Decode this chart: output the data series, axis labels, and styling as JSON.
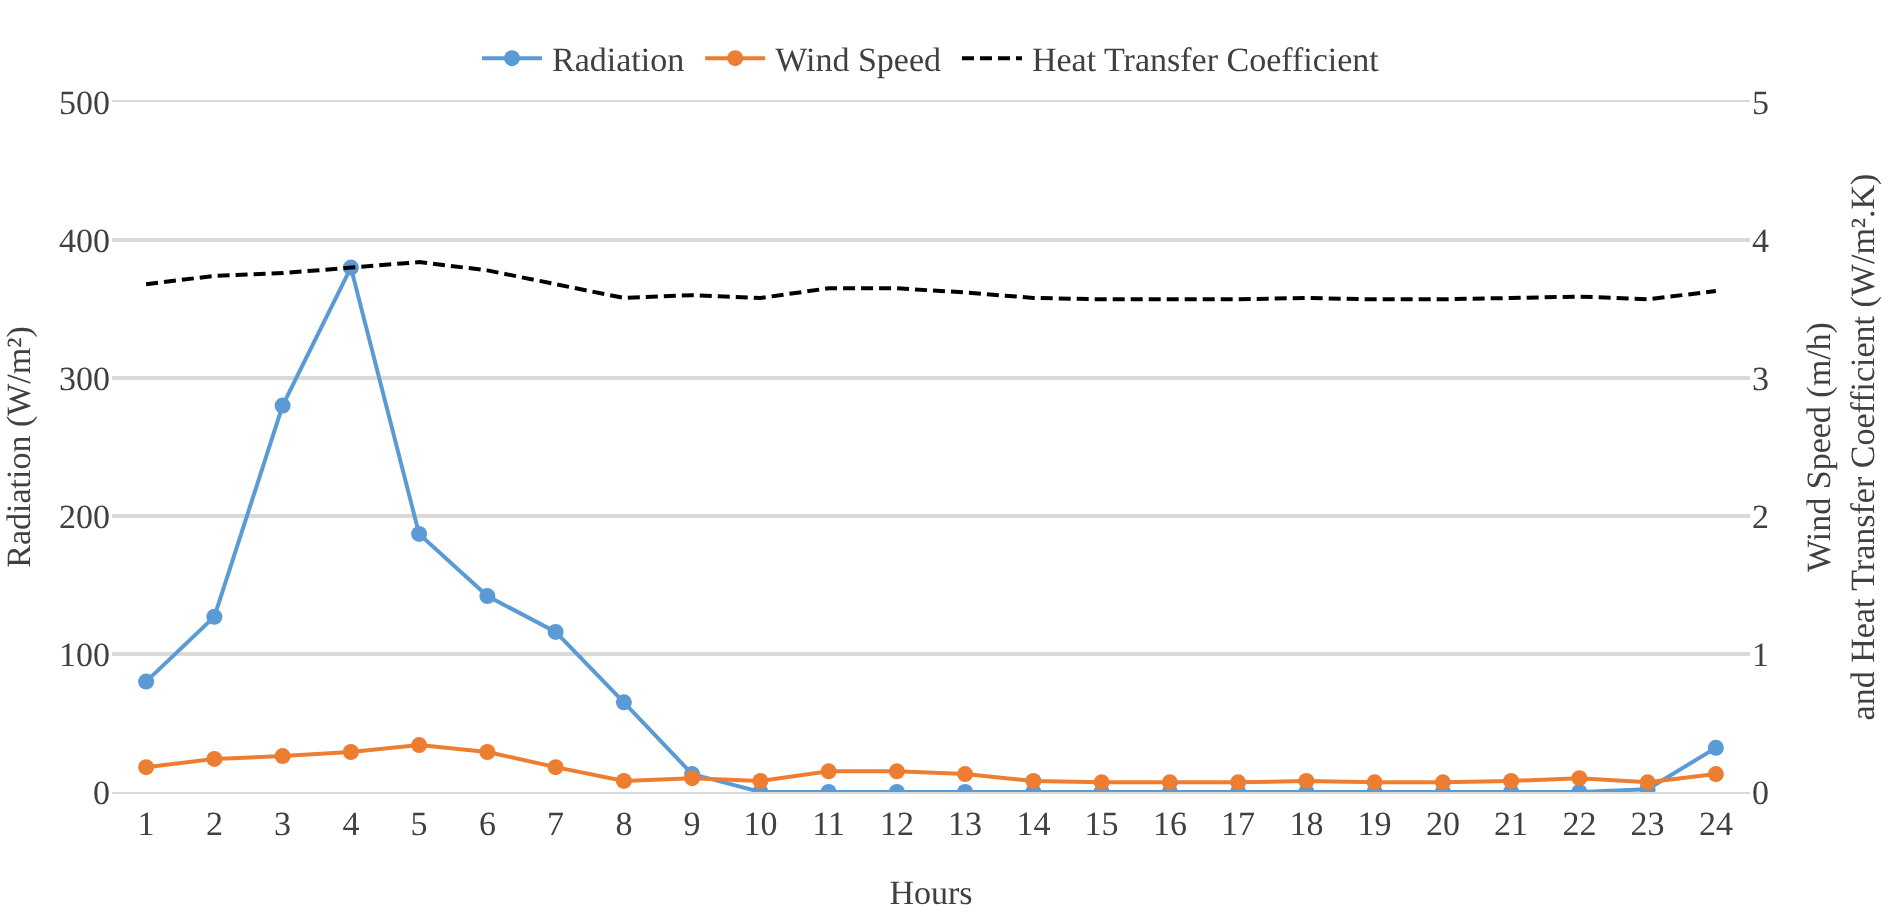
{
  "chart_data": {
    "type": "line",
    "xlabel": "Hours",
    "ylabel": "Radiation (W/m²)",
    "y2label": "Wind Speed (m/h) and Heat Transfer Coefficient (W/m².K)",
    "x": [
      1,
      2,
      3,
      4,
      5,
      6,
      7,
      8,
      9,
      10,
      11,
      12,
      13,
      14,
      15,
      16,
      17,
      18,
      19,
      20,
      21,
      22,
      23,
      24
    ],
    "xlim": [
      0.5,
      24.5
    ],
    "xticks": [
      1,
      2,
      3,
      4,
      5,
      6,
      7,
      8,
      9,
      10,
      11,
      12,
      13,
      14,
      15,
      16,
      17,
      18,
      19,
      20,
      21,
      22,
      23,
      24
    ],
    "series": [
      {
        "name": "Radiation",
        "color": "#5b9bd5",
        "marker": "circle",
        "line_style": "solid",
        "values": [
          80,
          127,
          280,
          380,
          187,
          142,
          116,
          65,
          13,
          0,
          0,
          0,
          0,
          0,
          0,
          0,
          0,
          0,
          0,
          0,
          0,
          0,
          2,
          32
        ]
      },
      {
        "name": "Wind Speed",
        "color": "#ed7d31",
        "marker": "circle",
        "line_style": "solid",
        "axis": "y2",
        "values": [
          0.18,
          0.24,
          0.26,
          0.29,
          0.34,
          0.29,
          0.18,
          0.08,
          0.1,
          0.08,
          0.15,
          0.15,
          0.13,
          0.08,
          0.07,
          0.07,
          0.07,
          0.08,
          0.07,
          0.07,
          0.08,
          0.1,
          0.07,
          0.13
        ]
      },
      {
        "name": "Heat Transfer Coefficient",
        "color": "#000000",
        "marker": "none",
        "line_style": "dashed",
        "axis": "y2",
        "values": [
          3.68,
          3.74,
          3.76,
          3.8,
          3.84,
          3.78,
          3.68,
          3.58,
          3.6,
          3.58,
          3.65,
          3.65,
          3.62,
          3.58,
          3.57,
          3.57,
          3.57,
          3.58,
          3.57,
          3.57,
          3.58,
          3.59,
          3.57,
          3.63
        ]
      }
    ],
    "ylim": [
      0,
      500
    ],
    "yticks": [
      0,
      100,
      200,
      300,
      400,
      500
    ],
    "y2lim": [
      0,
      5
    ],
    "y2ticks": [
      0,
      1,
      2,
      3,
      4,
      5
    ],
    "grid": "y",
    "legend": "top"
  }
}
